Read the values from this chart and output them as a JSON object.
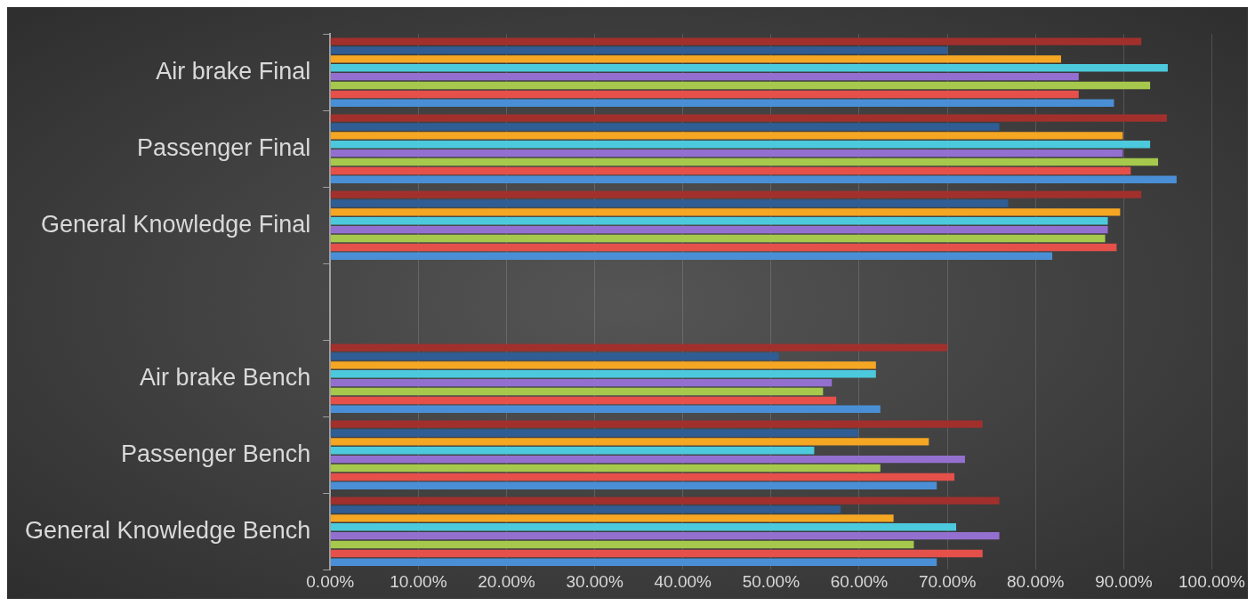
{
  "chart_data": {
    "type": "bar",
    "orientation": "horizontal",
    "categories": [
      "Air brake Final",
      "Passenger Final",
      "General Knowledge Final",
      null,
      "Air brake Bench",
      "Passenger Bench",
      "General Knowledge Bench"
    ],
    "series": [
      {
        "color": "#a1302c",
        "values": [
          92.0,
          94.9,
          92.0,
          null,
          70.0,
          74.0,
          75.9
        ]
      },
      {
        "color": "#2f5d94",
        "values": [
          70.0,
          75.9,
          76.9,
          null,
          50.9,
          59.9,
          57.9
        ]
      },
      {
        "color": "#f5a623",
        "values": [
          82.9,
          89.9,
          89.6,
          null,
          61.9,
          67.9,
          63.9
        ]
      },
      {
        "color": "#4cc9dc",
        "values": [
          95.0,
          93.0,
          88.2,
          null,
          61.9,
          54.9,
          71.0
        ]
      },
      {
        "color": "#9370d0",
        "values": [
          84.9,
          89.9,
          88.2,
          null,
          56.9,
          72.0,
          75.9
        ]
      },
      {
        "color": "#a6c84c",
        "values": [
          93.0,
          93.9,
          87.9,
          null,
          55.9,
          62.4,
          66.2
        ]
      },
      {
        "color": "#e5504b",
        "values": [
          84.9,
          90.8,
          89.2,
          null,
          57.4,
          70.8,
          74.0
        ]
      },
      {
        "color": "#4a8fd6",
        "values": [
          88.9,
          96.0,
          81.9,
          null,
          62.4,
          68.8,
          68.8
        ]
      }
    ],
    "xlim": [
      0,
      100
    ],
    "xticks": [
      {
        "value": 0,
        "label": "0.00%"
      },
      {
        "value": 10,
        "label": "10.00%"
      },
      {
        "value": 20,
        "label": "20.00%"
      },
      {
        "value": 30,
        "label": "30.00%"
      },
      {
        "value": 40,
        "label": "40.00%"
      },
      {
        "value": 50,
        "label": "50.00%"
      },
      {
        "value": 60,
        "label": "60.00%"
      },
      {
        "value": 70,
        "label": "70.00%"
      },
      {
        "value": 80,
        "label": "80.00%"
      },
      {
        "value": 90,
        "label": "90.00%"
      },
      {
        "value": 100,
        "label": "100.00%"
      }
    ],
    "grid": "x",
    "legend": false
  }
}
